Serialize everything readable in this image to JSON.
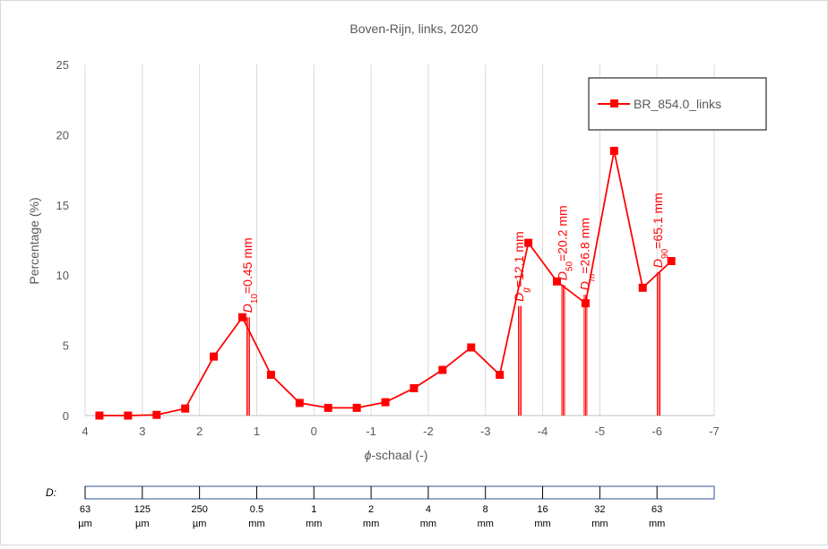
{
  "chart_data": {
    "type": "line",
    "title": "Boven-Rijn, links, 2020",
    "xlabel": "ϕ-schaal (-)",
    "ylabel": "Percentage (%)",
    "xlim": [
      4,
      -7
    ],
    "ylim": [
      0,
      25
    ],
    "x_ticks": [
      "4",
      "3",
      "2",
      "1",
      "0",
      "-1",
      "-2",
      "-3",
      "-4",
      "-5",
      "-6",
      "-7"
    ],
    "y_ticks": [
      "0",
      "5",
      "10",
      "15",
      "20",
      "25"
    ],
    "grid": "vertical",
    "legend_position": "top-right",
    "series": [
      {
        "name": "BR_854.0_links",
        "color": "#ff0000",
        "marker": "square",
        "x": [
          3.75,
          3.25,
          2.75,
          2.25,
          1.75,
          1.25,
          0.75,
          0.25,
          -0.25,
          -0.75,
          -1.25,
          -1.75,
          -2.25,
          -2.75,
          -3.25,
          -3.75,
          -4.25,
          -4.75,
          -5.25,
          -5.75,
          -6.25
        ],
        "y": [
          0.0,
          0.0,
          0.05,
          0.5,
          4.2,
          7.0,
          2.9,
          0.9,
          0.55,
          0.55,
          0.95,
          1.95,
          3.25,
          4.85,
          2.9,
          12.3,
          9.55,
          8.0,
          18.85,
          9.1,
          11.0
        ]
      }
    ],
    "annotations": [
      {
        "sub": "10",
        "text": "=0.45 mm",
        "x": 1.15,
        "y": 7.0,
        "bar_top": 7.0
      },
      {
        "sub": "g",
        "text": "=12.1 mm",
        "x": -3.6,
        "y": 7.8,
        "bar_top": 7.8
      },
      {
        "sub": "50",
        "text": "=20.2 mm",
        "x": -4.36,
        "y": 9.3,
        "bar_top": 9.3
      },
      {
        "sub": "m",
        "text": "=26.8 mm",
        "x": -4.75,
        "y": 8.6,
        "bar_top": 8.6
      },
      {
        "sub": "90",
        "text": "=65.1 mm",
        "x": -6.03,
        "y": 10.2,
        "bar_top": 10.2
      }
    ],
    "annotation_prefix": "D",
    "size_scale": {
      "label": "D:",
      "ticks": [
        {
          "x": 4,
          "top": "63",
          "bottom": "µm"
        },
        {
          "x": 3,
          "top": "125",
          "bottom": "µm"
        },
        {
          "x": 2,
          "top": "250",
          "bottom": "µm"
        },
        {
          "x": 1,
          "top": "0.5",
          "bottom": "mm"
        },
        {
          "x": 0,
          "top": "1",
          "bottom": "mm"
        },
        {
          "x": -1,
          "top": "2",
          "bottom": "mm"
        },
        {
          "x": -2,
          "top": "4",
          "bottom": "mm"
        },
        {
          "x": -3,
          "top": "8",
          "bottom": "mm"
        },
        {
          "x": -4,
          "top": "16",
          "bottom": "mm"
        },
        {
          "x": -5,
          "top": "32",
          "bottom": "mm"
        },
        {
          "x": -6,
          "top": "63",
          "bottom": "mm"
        }
      ]
    },
    "colors": {
      "series": "#ff0000",
      "grid": "#d9d9d9",
      "text": "#595959",
      "scale_border": "#2f5597"
    }
  }
}
